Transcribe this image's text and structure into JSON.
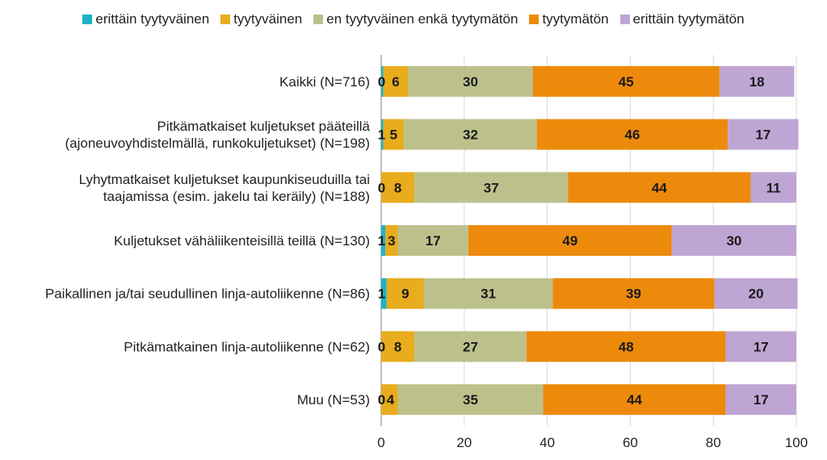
{
  "chart_data": {
    "type": "bar",
    "orientation": "horizontal",
    "stacked": true,
    "categories": [
      [
        "Kaikki (N=716)"
      ],
      [
        "Pitkämatkaiset kuljetukset pääteillä",
        "(ajoneuvoyhdistelmällä, runkokuljetukset) (N=198)"
      ],
      [
        "Lyhytmatkaiset kuljetukset kaupunkiseuduilla tai",
        "taajamissa (esim. jakelu tai keräily) (N=188)"
      ],
      [
        "Kuljetukset vähäliikenteisillä teillä (N=130)"
      ],
      [
        "Paikallinen ja/tai seudullinen linja-autoliikenne (N=86)"
      ],
      [
        "Pitkämatkainen linja-autoliikenne (N=62)"
      ],
      [
        "Muu (N=53)"
      ]
    ],
    "series": [
      {
        "name": "erittäin tyytyväinen",
        "color": "#1bb3c8",
        "values": [
          0.5,
          0.5,
          0,
          1,
          1.3,
          0,
          0
        ]
      },
      {
        "name": "tyytyväinen",
        "color": "#e8ac1c",
        "values": [
          6,
          5,
          8,
          3,
          9,
          8,
          4
        ]
      },
      {
        "name": "en tyytyväinen enkä tyytymätön",
        "color": "#bcc18c",
        "values": [
          30,
          32,
          37,
          17,
          31,
          27,
          35
        ]
      },
      {
        "name": "tyytymätön",
        "color": "#ed8a0c",
        "values": [
          45,
          46,
          44,
          49,
          39,
          48,
          44
        ]
      },
      {
        "name": "erittäin tyytymätön",
        "color": "#bfa5d3",
        "values": [
          18,
          17,
          11,
          30,
          20,
          17,
          17
        ]
      }
    ],
    "segment_labels": [
      [
        "0",
        "6",
        "30",
        "45",
        "18"
      ],
      [
        "1",
        "5",
        "32",
        "46",
        "17"
      ],
      [
        "0",
        "8",
        "37",
        "44",
        "11"
      ],
      [
        "1",
        "3",
        "17",
        "49",
        "30"
      ],
      [
        "1",
        "9",
        "31",
        "39",
        "20"
      ],
      [
        "0",
        "8",
        "27",
        "48",
        "17"
      ],
      [
        "0",
        "4",
        "35",
        "44",
        "17"
      ]
    ],
    "xlim": [
      0,
      100
    ],
    "xticks": [
      0,
      20,
      40,
      60,
      80,
      100
    ],
    "grid": true,
    "legend_position": "top"
  }
}
